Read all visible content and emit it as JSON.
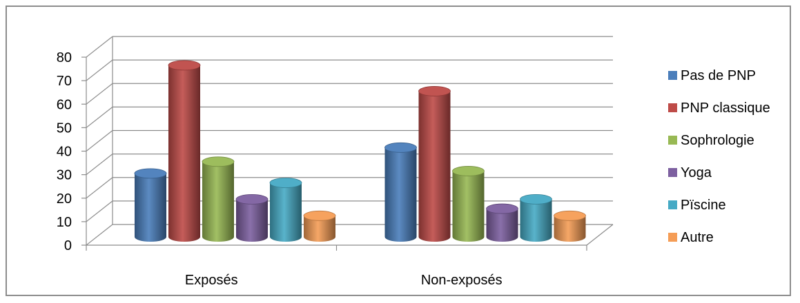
{
  "chart_data": {
    "type": "bar",
    "title": "",
    "xlabel": "",
    "ylabel": "",
    "categories": [
      "Exposés",
      "Non-exposés"
    ],
    "ylim": [
      0,
      80
    ],
    "yticks": [
      0,
      10,
      20,
      30,
      40,
      50,
      60,
      70,
      80
    ],
    "yticks_labels": [
      "0",
      "10",
      "20",
      "30",
      "40",
      "50",
      "60",
      "70",
      "80"
    ],
    "grid": true,
    "legend_position": "right",
    "series": [
      {
        "name": "Pas de PNP",
        "color": "#4a7ebb",
        "values": [
          27,
          38
        ]
      },
      {
        "name": "PNP classique",
        "color": "#be4b48",
        "values": [
          73,
          62
        ]
      },
      {
        "name": "Sophrologie",
        "color": "#98b954",
        "values": [
          32,
          28
        ]
      },
      {
        "name": "Yoga",
        "color": "#7d60a0",
        "values": [
          16,
          12
        ]
      },
      {
        "name": "Pïscine",
        "color": "#46aac5",
        "values": [
          23,
          16
        ]
      },
      {
        "name": "Autre",
        "color": "#f59d56",
        "values": [
          9,
          9
        ]
      }
    ]
  }
}
